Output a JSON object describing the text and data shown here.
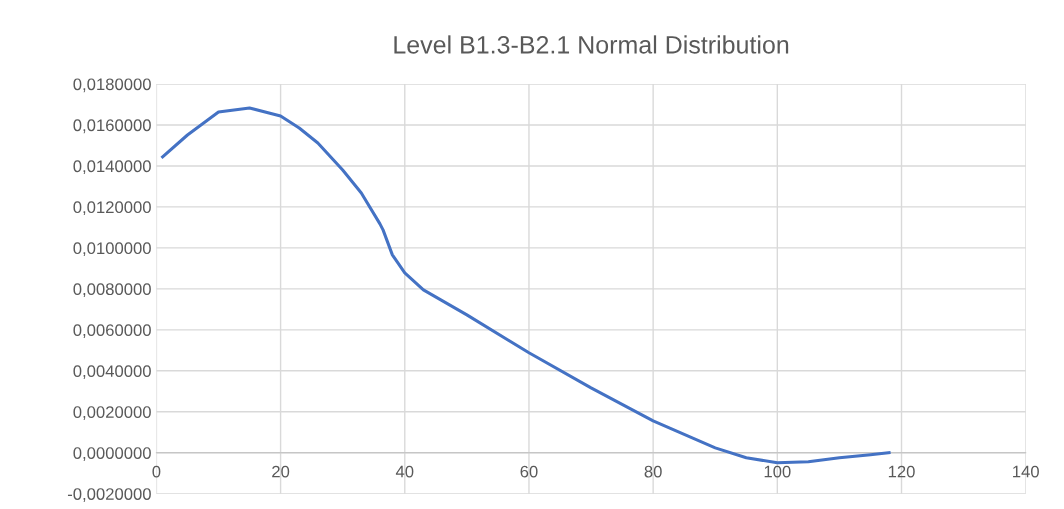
{
  "chart_data": {
    "type": "line",
    "title": "Level B1.3-B2.1 Normal Distribution",
    "x": [
      1,
      5,
      10,
      15,
      20,
      23,
      26,
      30,
      33,
      36,
      36.5,
      38,
      40,
      43,
      50,
      60,
      70,
      80,
      90,
      95,
      100,
      105,
      110,
      115,
      118
    ],
    "series": [
      {
        "color": "#4472c4",
        "values": [
          0.01444,
          0.01551,
          0.01663,
          0.01683,
          0.01644,
          0.01585,
          0.01512,
          0.0138,
          0.01268,
          0.01117,
          0.01088,
          0.00966,
          0.00878,
          0.00795,
          0.00673,
          0.00488,
          0.00317,
          0.00156,
          0.00024,
          -0.00024,
          -0.00049,
          -0.00044,
          -0.00024,
          -0.0001,
          0.0
        ]
      }
    ],
    "xlim": [
      0,
      140
    ],
    "xticks": [
      0,
      20,
      40,
      60,
      80,
      100,
      120,
      140
    ],
    "ylim": [
      -0.002,
      0.018
    ],
    "yticks": [
      {
        "value": -0.002,
        "label": "-0,0020000"
      },
      {
        "value": 0,
        "label": "0,0000000"
      },
      {
        "value": 0.002,
        "label": "0,0020000"
      },
      {
        "value": 0.004,
        "label": "0,0040000"
      },
      {
        "value": 0.006,
        "label": "0,0060000"
      },
      {
        "value": 0.008,
        "label": "0,0080000"
      },
      {
        "value": 0.01,
        "label": "0,0100000"
      },
      {
        "value": 0.012,
        "label": "0,0120000"
      },
      {
        "value": 0.014,
        "label": "0,0140000"
      },
      {
        "value": 0.016,
        "label": "0,0160000"
      },
      {
        "value": 0.018,
        "label": "0,0180000"
      }
    ],
    "grid": true,
    "marker": "none",
    "line_style": "solid",
    "legend": false
  }
}
